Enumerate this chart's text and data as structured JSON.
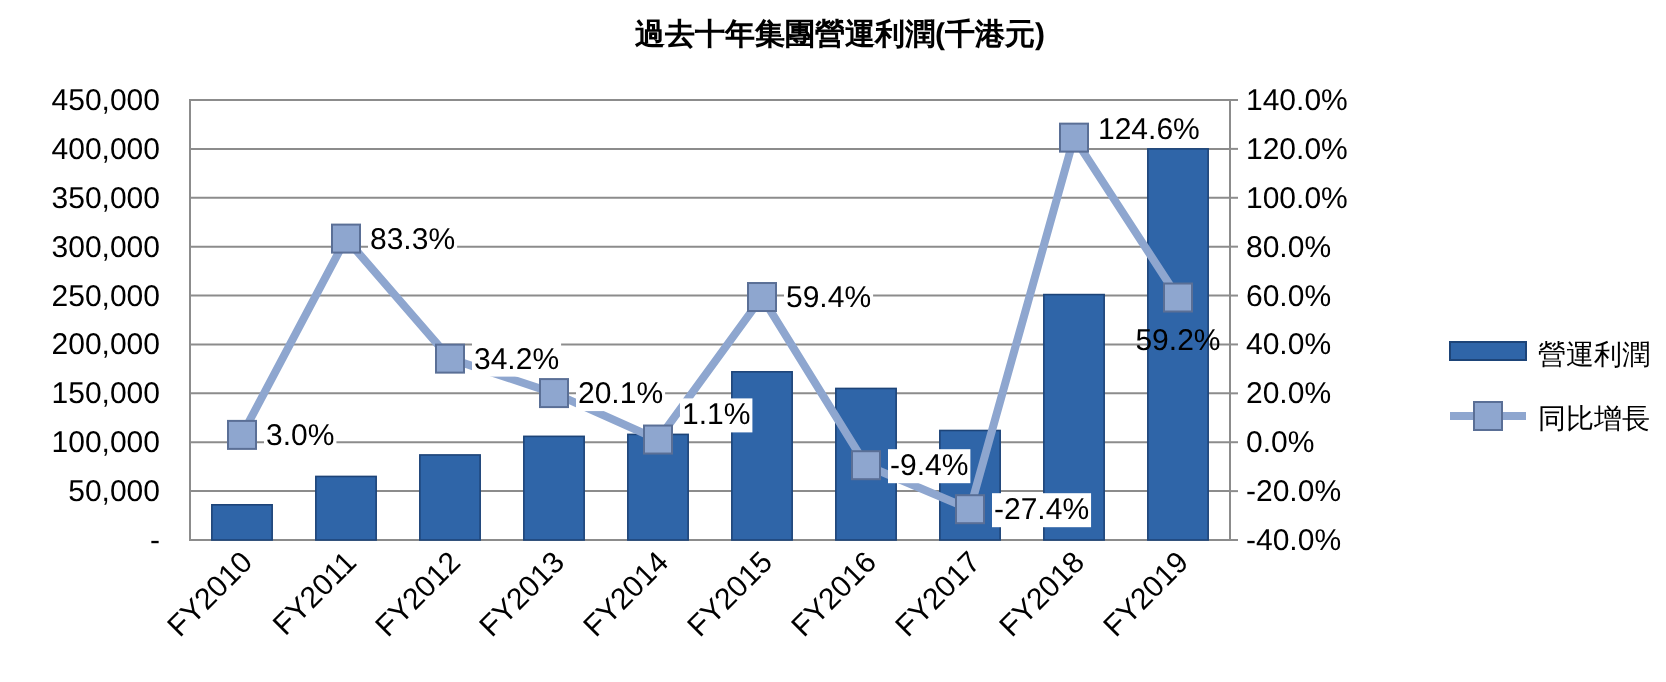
{
  "chart_data": {
    "type": "bar",
    "title": "過去十年集團營運利潤(千港元)",
    "categories": [
      "FY2010",
      "FY2011",
      "FY2012",
      "FY2013",
      "FY2014",
      "FY2015",
      "FY2016",
      "FY2017",
      "FY2018",
      "FY2019"
    ],
    "series": [
      {
        "name": "營運利潤",
        "color": "#2f65a8",
        "values": [
          36000,
          65000,
          87000,
          106000,
          108000,
          172000,
          155000,
          112000,
          251000,
          400000
        ]
      },
      {
        "name": "同比增長",
        "type": "line",
        "axis": "y2",
        "color": "#8ea6cf",
        "values": [
          3.0,
          83.3,
          34.2,
          20.1,
          1.1,
          59.4,
          -9.4,
          -27.4,
          124.6,
          59.2
        ],
        "value_labels": [
          "3.0%",
          "83.3%",
          "34.2%",
          "20.1%",
          "1.1%",
          "59.4%",
          "-9.4%",
          "-27.4%",
          "124.6%",
          "59.2%"
        ]
      }
    ],
    "ylim": [
      0,
      450000
    ],
    "yticks": [
      {
        "value": 0,
        "label": "-"
      },
      {
        "value": 50000,
        "label": "50,000"
      },
      {
        "value": 100000,
        "label": "100,000"
      },
      {
        "value": 150000,
        "label": "150,000"
      },
      {
        "value": 200000,
        "label": "200,000"
      },
      {
        "value": 250000,
        "label": "250,000"
      },
      {
        "value": 300000,
        "label": "300,000"
      },
      {
        "value": 350000,
        "label": "350,000"
      },
      {
        "value": 400000,
        "label": "400,000"
      },
      {
        "value": 450000,
        "label": "450,000"
      }
    ],
    "y2lim": [
      -40,
      140
    ],
    "y2ticks": [
      {
        "value": -40,
        "label": "-40.0%"
      },
      {
        "value": -20,
        "label": "-20.0%"
      },
      {
        "value": 0,
        "label": "0.0%"
      },
      {
        "value": 20,
        "label": "20.0%"
      },
      {
        "value": 40,
        "label": "40.0%"
      },
      {
        "value": 60,
        "label": "60.0%"
      },
      {
        "value": 80,
        "label": "80.0%"
      },
      {
        "value": 100,
        "label": "100.0%"
      },
      {
        "value": 120,
        "label": "120.0%"
      },
      {
        "value": 140,
        "label": "140.0%"
      }
    ],
    "grid": "y",
    "legend": "right",
    "marker": "square"
  }
}
